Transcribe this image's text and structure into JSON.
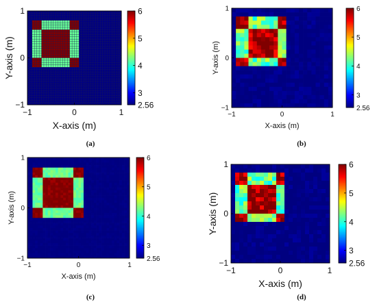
{
  "chart_data": [
    {
      "id": "a",
      "type": "heatmap",
      "caption": "(a)",
      "xlabel": "X-axis (m)",
      "ylabel": "Y-axis (m)",
      "xlim": [
        -1,
        1
      ],
      "ylim": [
        -1,
        1
      ],
      "xticks": [
        "−1",
        "0",
        "1"
      ],
      "yticks": [
        "1",
        "0",
        "−1"
      ],
      "colorbar": {
        "min": 2.56,
        "max": 6,
        "ticks": [
          "6",
          "5",
          "4",
          "3",
          "2.56"
        ]
      },
      "background_value": 2.56,
      "grid_cells": 40,
      "grid_lines": true,
      "shape": {
        "outer": [
          -0.9,
          0.1,
          -0.2,
          0.8
        ],
        "inner": [
          -0.7,
          -0.1,
          0.0,
          0.6
        ],
        "frame_value": 4.2,
        "center_value": 6.0,
        "corner_value": 6.0
      },
      "noise": 0.0,
      "size": "large"
    },
    {
      "id": "b",
      "type": "heatmap",
      "caption": "(b)",
      "xlabel": "X-axis (m)",
      "ylabel": "Y-axis (m)",
      "xlim": [
        -1,
        1
      ],
      "ylim": [
        -1,
        1
      ],
      "xticks": [
        "−1",
        "0",
        "1"
      ],
      "yticks": [
        "1",
        "0",
        "−1"
      ],
      "colorbar": {
        "min": 2.56,
        "max": 6,
        "ticks": [
          "6",
          "5",
          "4",
          "3",
          "2.56"
        ]
      },
      "background_value": 2.56,
      "grid_cells": 24,
      "grid_lines": false,
      "shape": {
        "outer": [
          -0.9,
          0.1,
          -0.2,
          0.8
        ],
        "inner": [
          -0.7,
          -0.1,
          0.0,
          0.6
        ],
        "frame_value": 4.2,
        "center_value": 5.9,
        "corner_value": 5.9
      },
      "noise": 0.35,
      "size": "small"
    },
    {
      "id": "c",
      "type": "heatmap",
      "caption": "(c)",
      "xlabel": "X-axis (m)",
      "ylabel": "Y-axis (m)",
      "xlim": [
        -1,
        1
      ],
      "ylim": [
        -1,
        1
      ],
      "xticks": [
        "−1",
        "0",
        "1"
      ],
      "yticks": [
        "1",
        "0",
        "−1"
      ],
      "colorbar": {
        "min": 2.56,
        "max": 6,
        "ticks": [
          "6",
          "5",
          "4",
          "3",
          "2.56"
        ]
      },
      "background_value": 2.56,
      "grid_cells": 40,
      "grid_lines": false,
      "shape": {
        "outer": [
          -0.9,
          0.1,
          -0.2,
          0.8
        ],
        "inner": [
          -0.7,
          -0.1,
          0.0,
          0.6
        ],
        "frame_value": 4.2,
        "center_value": 6.0,
        "corner_value": 6.0
      },
      "noise": 0.12,
      "size": "small"
    },
    {
      "id": "d",
      "type": "heatmap",
      "caption": "(d)",
      "xlabel": "X-axis (m)",
      "ylabel": "Y-axis (m)",
      "xlim": [
        -1,
        1
      ],
      "ylim": [
        -1,
        1
      ],
      "xticks": [
        "−1",
        "0",
        "1"
      ],
      "yticks": [
        "1",
        "0",
        "−1"
      ],
      "colorbar": {
        "min": 2.56,
        "max": 6,
        "ticks": [
          "6",
          "5",
          "4",
          "3",
          "2.56"
        ]
      },
      "background_value": 2.56,
      "grid_cells": 24,
      "grid_lines": false,
      "shape": {
        "outer": [
          -0.9,
          0.1,
          -0.2,
          0.8
        ],
        "inner": [
          -0.7,
          -0.1,
          0.0,
          0.6
        ],
        "frame_value": 4.2,
        "center_value": 5.9,
        "corner_value": 5.9
      },
      "noise": 0.35,
      "size": "large"
    }
  ]
}
